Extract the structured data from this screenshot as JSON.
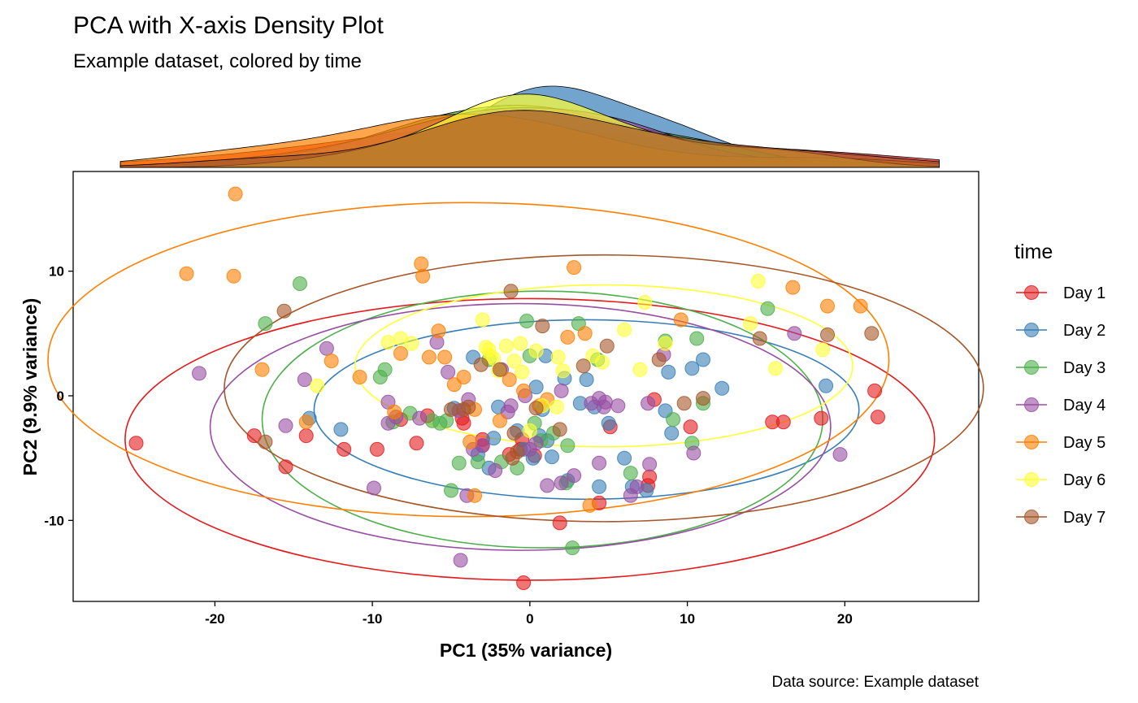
{
  "chart_data": {
    "type": "scatter",
    "title": "PCA with X-axis Density Plot",
    "subtitle": "Example dataset, colored by time",
    "xlabel": "PC1 (35% variance)",
    "ylabel": "PC2 (9.9% variance)",
    "caption": "Data source: Example dataset",
    "xlim": [
      -29,
      28.5
    ],
    "ylim": [
      -16.5,
      18
    ],
    "x_ticks": [
      -20,
      -10,
      0,
      10,
      20
    ],
    "y_ticks": [
      -10,
      0,
      10
    ],
    "grid": false,
    "legend": {
      "title": "time",
      "position": "right"
    },
    "marginal_density": "x-axis density per series",
    "series": [
      {
        "name": "Day 1",
        "color": "#E41A1C",
        "ellipse": {
          "cx": 0,
          "cy": -3.5,
          "rx": 25.7,
          "ry": 11.3
        },
        "points": [
          [
            -25,
            -3.8
          ],
          [
            -17.5,
            -3.2
          ],
          [
            -15.5,
            -5.7
          ],
          [
            -14.2,
            -3.2
          ],
          [
            -11.8,
            -4.3
          ],
          [
            -9.7,
            -4.3
          ],
          [
            -8.2,
            -1.9
          ],
          [
            -7.2,
            -3.8
          ],
          [
            -6.5,
            -1.6
          ],
          [
            -4.3,
            -1.8
          ],
          [
            -4.2,
            -2.2
          ],
          [
            -3,
            -4
          ],
          [
            -1.3,
            -4.7
          ],
          [
            -0.6,
            -4.3
          ],
          [
            -0.5,
            -3.5
          ],
          [
            0.3,
            -4.8
          ],
          [
            1.9,
            -10.2
          ],
          [
            4.4,
            -8.6
          ],
          [
            5.1,
            -2.5
          ],
          [
            7.6,
            -6.5
          ],
          [
            7.5,
            -7.2
          ],
          [
            7.9,
            -0.3
          ],
          [
            10.2,
            -2.5
          ],
          [
            15.4,
            -2.1
          ],
          [
            16.1,
            -2.1
          ],
          [
            18.5,
            -1.8
          ],
          [
            21.9,
            0.4
          ],
          [
            22.1,
            -1.7
          ],
          [
            -0.4,
            -15
          ],
          [
            -3,
            -3.5
          ]
        ]
      },
      {
        "name": "Day 2",
        "color": "#377EB8",
        "ellipse": {
          "cx": 3.6,
          "cy": -1.1,
          "rx": 17.3,
          "ry": 7.2
        },
        "points": [
          [
            -14,
            -1.8
          ],
          [
            -12,
            -2.7
          ],
          [
            -3.6,
            3.1
          ],
          [
            -3.3,
            -4.7
          ],
          [
            -2.6,
            -5.8
          ],
          [
            -2.3,
            -3.4
          ],
          [
            -2,
            -0.9
          ],
          [
            -0.8,
            -2.8
          ],
          [
            -0.4,
            -4.3
          ],
          [
            0.2,
            -5
          ],
          [
            0.4,
            0.7
          ],
          [
            0.6,
            -3.2
          ],
          [
            0.8,
            -1.1
          ],
          [
            1,
            3.2
          ],
          [
            1.1,
            -3.6
          ],
          [
            1.4,
            -4.9
          ],
          [
            2.2,
            1.4
          ],
          [
            2.4,
            -6.8
          ],
          [
            3.2,
            -0.6
          ],
          [
            3.6,
            1.3
          ],
          [
            4.4,
            -7.3
          ],
          [
            5,
            -2.2
          ],
          [
            6,
            -5
          ],
          [
            6.5,
            -7.3
          ],
          [
            7.4,
            -7.6
          ],
          [
            8.6,
            -1.2
          ],
          [
            8.8,
            1.9
          ],
          [
            9,
            -3
          ],
          [
            10.3,
            2.2
          ],
          [
            11,
            2.9
          ],
          [
            12.2,
            0.6
          ],
          [
            18.8,
            0.8
          ],
          [
            -4.8,
            -1
          ],
          [
            4.1,
            -0.9
          ]
        ]
      },
      {
        "name": "Day 3",
        "color": "#4DAF4A",
        "ellipse": {
          "cx": 0.8,
          "cy": -1.9,
          "rx": 17.8,
          "ry": 10.3
        },
        "points": [
          [
            -16.8,
            5.8
          ],
          [
            -14.6,
            9
          ],
          [
            -9.5,
            1.5
          ],
          [
            -9.2,
            2.1
          ],
          [
            -8.7,
            -2.1
          ],
          [
            -7.6,
            -1.4
          ],
          [
            -6.2,
            -2
          ],
          [
            -5.7,
            -2.2
          ],
          [
            -5.3,
            -2
          ],
          [
            -5,
            -7.6
          ],
          [
            -4.5,
            -5.4
          ],
          [
            -3.3,
            -5.3
          ],
          [
            -2.6,
            2.9
          ],
          [
            -1.8,
            -5.3
          ],
          [
            -0.8,
            -5.8
          ],
          [
            0,
            3.2
          ],
          [
            0.3,
            -2.2
          ],
          [
            0.7,
            -3.6
          ],
          [
            1.5,
            -3
          ],
          [
            2.3,
            -7
          ],
          [
            2.7,
            -12.2
          ],
          [
            3.1,
            5.8
          ],
          [
            4.3,
            2.9
          ],
          [
            6.4,
            -6.2
          ],
          [
            8.6,
            4.4
          ],
          [
            9.1,
            -1.9
          ],
          [
            10.3,
            -3.8
          ],
          [
            10.6,
            4.6
          ],
          [
            11,
            -0.6
          ],
          [
            15.1,
            7
          ],
          [
            -0.2,
            6
          ],
          [
            2.4,
            -4
          ]
        ]
      },
      {
        "name": "Day 4",
        "color": "#984EA3",
        "ellipse": {
          "cx": -0.6,
          "cy": -2.5,
          "rx": 19.7,
          "ry": 9.9
        },
        "points": [
          [
            -21,
            1.8
          ],
          [
            -15.5,
            -2.4
          ],
          [
            -14.3,
            1.3
          ],
          [
            -12.9,
            3.8
          ],
          [
            -9.9,
            -7.4
          ],
          [
            -9,
            -0.5
          ],
          [
            -9,
            -2.2
          ],
          [
            -8.5,
            -1.7
          ],
          [
            -7,
            -1.8
          ],
          [
            -5.9,
            4.3
          ],
          [
            -5.2,
            1.9
          ],
          [
            -4.5,
            -1.2
          ],
          [
            -4.4,
            -13.2
          ],
          [
            -4,
            -8
          ],
          [
            -3.9,
            -0.3
          ],
          [
            -3.6,
            -4.3
          ],
          [
            -3,
            -4
          ],
          [
            -2.2,
            -6
          ],
          [
            -1.8,
            2.1
          ],
          [
            -1.4,
            -1.3
          ],
          [
            -1.2,
            -0.8
          ],
          [
            0,
            -4.3
          ],
          [
            0.4,
            -3.8
          ],
          [
            1.1,
            -7.2
          ],
          [
            2,
            -7
          ],
          [
            2.8,
            -6.4
          ],
          [
            3.9,
            -0.6
          ],
          [
            4.4,
            -5.4
          ],
          [
            4.4,
            -0.2
          ],
          [
            4.7,
            -0.9
          ],
          [
            4.8,
            -0.5
          ],
          [
            5.6,
            -0.8
          ],
          [
            6.4,
            -8
          ],
          [
            6.8,
            -7.3
          ],
          [
            7.5,
            -0.6
          ],
          [
            7.6,
            -5.5
          ],
          [
            8.5,
            3.3
          ],
          [
            10.4,
            -4.6
          ],
          [
            16.8,
            5
          ],
          [
            19.7,
            -4.7
          ],
          [
            -0.3,
            0
          ],
          [
            2,
            0.4
          ]
        ]
      },
      {
        "name": "Day 5",
        "color": "#FF7F00",
        "ellipse": {
          "cx": -3.9,
          "cy": 2.9,
          "rx": 26.7,
          "ry": 12.6
        },
        "points": [
          [
            -21.8,
            9.8
          ],
          [
            -18.7,
            16.2
          ],
          [
            -18.8,
            9.6
          ],
          [
            -17,
            2.1
          ],
          [
            -14.2,
            -2.1
          ],
          [
            -12.6,
            2.8
          ],
          [
            -10.8,
            1.5
          ],
          [
            -8.6,
            -1.3
          ],
          [
            -8.2,
            3.4
          ],
          [
            -6.9,
            10.6
          ],
          [
            -6.8,
            9.6
          ],
          [
            -6.4,
            3.1
          ],
          [
            -5.8,
            5.2
          ],
          [
            -5.4,
            3.1
          ],
          [
            -4.8,
            0.9
          ],
          [
            -4.2,
            1.5
          ],
          [
            -3.8,
            -3.7
          ],
          [
            -3.5,
            -1.1
          ],
          [
            -3.5,
            -8
          ],
          [
            -1.3,
            1.3
          ],
          [
            -0.4,
            0.4
          ],
          [
            0.6,
            -0.8
          ],
          [
            1.1,
            -0.3
          ],
          [
            2.4,
            4.7
          ],
          [
            2.8,
            10.3
          ],
          [
            3.5,
            5
          ],
          [
            3.8,
            -8.8
          ],
          [
            9.6,
            6.1
          ],
          [
            16.7,
            8.7
          ],
          [
            18.9,
            7.2
          ],
          [
            21,
            7.2
          ],
          [
            -1.9,
            -2
          ]
        ]
      },
      {
        "name": "Day 6",
        "color": "#FFFF33",
        "ellipse": {
          "cx": 4.7,
          "cy": 2.4,
          "rx": 15.8,
          "ry": 6.5
        },
        "points": [
          [
            -13.5,
            0.8
          ],
          [
            -9,
            4.3
          ],
          [
            -8.2,
            4.6
          ],
          [
            -7.5,
            4.2
          ],
          [
            -3,
            6.1
          ],
          [
            -2.8,
            3.9
          ],
          [
            -2.6,
            3.7
          ],
          [
            -2.5,
            3.2
          ],
          [
            -2.3,
            3
          ],
          [
            -2,
            2
          ],
          [
            -1.5,
            4
          ],
          [
            -1,
            2.8
          ],
          [
            -0.6,
            4.2
          ],
          [
            0.4,
            3.6
          ],
          [
            0.8,
            -0.8
          ],
          [
            1.7,
            -0.9
          ],
          [
            1.8,
            3.1
          ],
          [
            2.1,
            2
          ],
          [
            4,
            3.2
          ],
          [
            4.6,
            2.7
          ],
          [
            6,
            5.3
          ],
          [
            7,
            2.1
          ],
          [
            7.3,
            7.5
          ],
          [
            8.6,
            4.2
          ],
          [
            14,
            5.8
          ],
          [
            14.5,
            9.2
          ],
          [
            15.6,
            2.2
          ],
          [
            18.6,
            3.7
          ],
          [
            0,
            -2.8
          ],
          [
            -0.5,
            1.9
          ]
        ]
      },
      {
        "name": "Day 7",
        "color": "#A65628",
        "ellipse": {
          "cx": 4.7,
          "cy": 0.6,
          "rx": 24.1,
          "ry": 10.7
        },
        "points": [
          [
            -16.8,
            -3.7
          ],
          [
            -15.6,
            6.8
          ],
          [
            -5,
            -1.1
          ],
          [
            -4.2,
            -1.1
          ],
          [
            -3.9,
            -0.9
          ],
          [
            -3.1,
            2.5
          ],
          [
            -1.9,
            2.1
          ],
          [
            -1.2,
            8.4
          ],
          [
            -1.1,
            -5
          ],
          [
            -0.8,
            -4.5
          ],
          [
            0.8,
            5.6
          ],
          [
            1.9,
            -2.7
          ],
          [
            3.4,
            2.4
          ],
          [
            4.9,
            4
          ],
          [
            8.2,
            2.9
          ],
          [
            9.8,
            -0.6
          ],
          [
            11,
            -0.2
          ],
          [
            14.6,
            4.6
          ],
          [
            18.9,
            4.9
          ],
          [
            21.7,
            5
          ],
          [
            -1,
            -3
          ],
          [
            0.4,
            -1
          ]
        ]
      }
    ]
  }
}
